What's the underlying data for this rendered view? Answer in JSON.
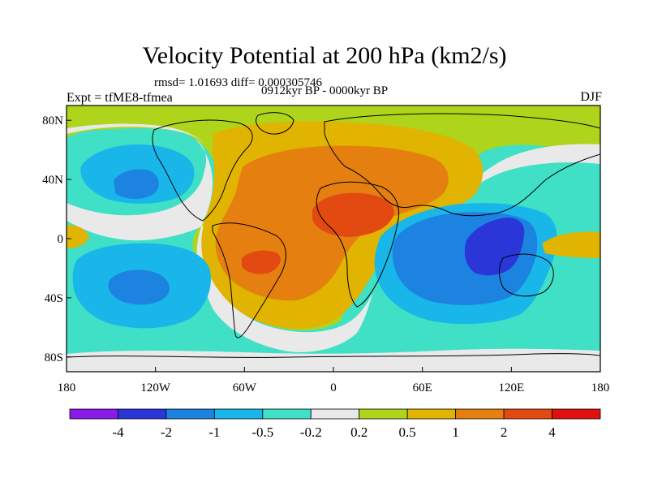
{
  "figure": {
    "title": "Velocity Potential at 200 hPa (km2/s)",
    "stats": "rmsd= 1.01693 diff= 0.000305746",
    "experiment": "Expt = tfME8-tfmea",
    "period": "0912kyr BP - 0000kyr BP",
    "season": "DJF"
  },
  "axes": {
    "x_ticks": [
      {
        "lon": -180,
        "label": "180"
      },
      {
        "lon": -120,
        "label": "120W"
      },
      {
        "lon": -60,
        "label": "60W"
      },
      {
        "lon": 0,
        "label": "0"
      },
      {
        "lon": 60,
        "label": "60E"
      },
      {
        "lon": 120,
        "label": "120E"
      },
      {
        "lon": 180,
        "label": "180"
      }
    ],
    "y_ticks": [
      {
        "lat": 80,
        "label": "80N"
      },
      {
        "lat": 40,
        "label": "40N"
      },
      {
        "lat": 0,
        "label": "0"
      },
      {
        "lat": -40,
        "label": "40S"
      },
      {
        "lat": -80,
        "label": "80S"
      }
    ],
    "lon_range": [
      -180,
      180
    ],
    "lat_range": [
      -90,
      90
    ]
  },
  "colorbar": {
    "colors": [
      "#8a1ae6",
      "#2a36d8",
      "#1c84e0",
      "#19b6ea",
      "#3fe0c6",
      "#e9e9e9",
      "#aed51c",
      "#e0b400",
      "#e47f10",
      "#e34a12",
      "#e01010"
    ],
    "labels": [
      "-4",
      "-2",
      "-1",
      "-0.5",
      "-0.2",
      "0.2",
      "0.5",
      "1",
      "2",
      "4"
    ]
  },
  "field": {
    "background_level": "0.2",
    "regions": [
      {
        "name": "polar-band-north",
        "level": "0.5",
        "lon_min": -180,
        "lon_max": 180,
        "lat_min": 68,
        "lat_max": 90
      },
      {
        "name": "polar-band-south",
        "level": "-0.2",
        "lon_min": -180,
        "lon_max": 180,
        "lat_min": -90,
        "lat_max": -68
      }
    ]
  }
}
